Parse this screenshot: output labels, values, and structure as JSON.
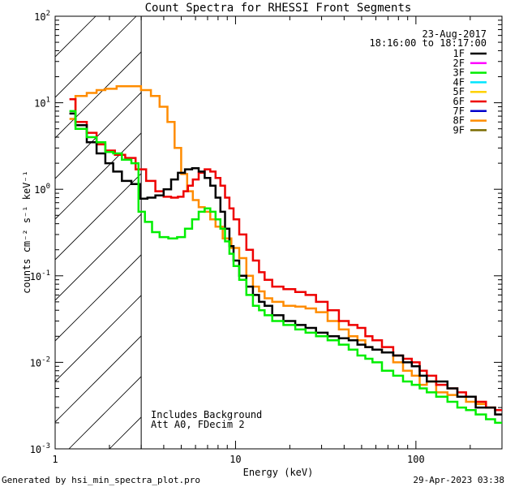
{
  "chart_data": {
    "type": "line",
    "title": "Count Spectra for RHESSI Front Segments",
    "xlabel": "Energy (keV)",
    "ylabel": "counts cm⁻² s⁻¹ keV⁻¹",
    "xscale": "log",
    "yscale": "log",
    "xlim": [
      1,
      300
    ],
    "ylim": [
      0.001,
      100
    ],
    "x_ticks": [
      {
        "value": 1,
        "label": "1"
      },
      {
        "value": 10,
        "label": "10"
      },
      {
        "value": 100,
        "label": "100"
      }
    ],
    "y_ticks": [
      {
        "value": 100,
        "base": "10",
        "exp": "2"
      },
      {
        "value": 10,
        "base": "10",
        "exp": "1"
      },
      {
        "value": 1,
        "base": "10",
        "exp": "0"
      },
      {
        "value": 0.1,
        "base": "10",
        "exp": "-1"
      },
      {
        "value": 0.01,
        "base": "10",
        "exp": "-2"
      },
      {
        "value": 0.001,
        "base": "10",
        "exp": "-3"
      }
    ],
    "attenuator_cutoff_kev": 3,
    "legend_position": "top-right",
    "legend_header": [
      "23-Aug-2017",
      "18:16:00 to 18:17:00"
    ],
    "legend": [
      {
        "label": "1F",
        "color": "#000000"
      },
      {
        "label": "2F",
        "color": "#ff00ff"
      },
      {
        "label": "3F",
        "color": "#00ee00"
      },
      {
        "label": "4F",
        "color": "#00e5ff"
      },
      {
        "label": "5F",
        "color": "#ffd200"
      },
      {
        "label": "6F",
        "color": "#ee0000"
      },
      {
        "label": "7F",
        "color": "#0000cc"
      },
      {
        "label": "8F",
        "color": "#ff8c00"
      },
      {
        "label": "9F",
        "color": "#7a6b00"
      }
    ],
    "annotations": [
      "Includes Background",
      "Att A0, FDecim 2"
    ],
    "series": [
      {
        "name": "8F",
        "color": "#ff8c00",
        "points": [
          [
            1.2,
            6.5
          ],
          [
            1.4,
            12
          ],
          [
            1.6,
            13
          ],
          [
            1.8,
            14
          ],
          [
            2.0,
            14.5
          ],
          [
            2.4,
            15.5
          ],
          [
            2.8,
            15.5
          ],
          [
            3.2,
            14
          ],
          [
            3.6,
            12
          ],
          [
            4.0,
            9
          ],
          [
            4.4,
            6
          ],
          [
            4.8,
            3
          ],
          [
            5.2,
            1.5
          ],
          [
            5.6,
            0.95
          ],
          [
            6.0,
            0.75
          ],
          [
            6.5,
            0.62
          ],
          [
            7.0,
            0.55
          ],
          [
            7.5,
            0.45
          ],
          [
            8.0,
            0.37
          ],
          [
            9.0,
            0.27
          ],
          [
            10,
            0.21
          ],
          [
            11,
            0.16
          ],
          [
            12,
            0.1
          ],
          [
            13,
            0.075
          ],
          [
            14,
            0.066
          ],
          [
            15,
            0.055
          ],
          [
            17,
            0.05
          ],
          [
            20,
            0.045
          ],
          [
            23,
            0.044
          ],
          [
            26,
            0.042
          ],
          [
            30,
            0.038
          ],
          [
            35,
            0.03
          ],
          [
            40,
            0.024
          ],
          [
            45,
            0.02
          ],
          [
            50,
            0.018
          ],
          [
            55,
            0.015
          ],
          [
            60,
            0.014
          ],
          [
            70,
            0.013
          ],
          [
            80,
            0.01
          ],
          [
            90,
            0.008
          ],
          [
            100,
            0.007
          ],
          [
            110,
            0.0055
          ],
          [
            120,
            0.006
          ],
          [
            140,
            0.0045
          ],
          [
            160,
            0.0042
          ],
          [
            180,
            0.004
          ],
          [
            200,
            0.0035
          ],
          [
            230,
            0.0033
          ],
          [
            260,
            0.003
          ],
          [
            290,
            0.0028
          ]
        ]
      },
      {
        "name": "6F",
        "color": "#ee0000",
        "points": [
          [
            1.2,
            11
          ],
          [
            1.4,
            6
          ],
          [
            1.6,
            4.5
          ],
          [
            1.8,
            3.3
          ],
          [
            2.0,
            2.8
          ],
          [
            2.3,
            2.5
          ],
          [
            2.6,
            2.3
          ],
          [
            3.0,
            1.7
          ],
          [
            3.4,
            1.25
          ],
          [
            3.8,
            0.95
          ],
          [
            4.2,
            0.82
          ],
          [
            4.6,
            0.8
          ],
          [
            5.0,
            0.82
          ],
          [
            5.3,
            0.95
          ],
          [
            5.6,
            1.1
          ],
          [
            6.0,
            1.3
          ],
          [
            6.5,
            1.55
          ],
          [
            7.0,
            1.7
          ],
          [
            7.5,
            1.6
          ],
          [
            8.0,
            1.35
          ],
          [
            8.5,
            1.1
          ],
          [
            9.0,
            0.8
          ],
          [
            9.5,
            0.6
          ],
          [
            10,
            0.45
          ],
          [
            11,
            0.3
          ],
          [
            12,
            0.2
          ],
          [
            13,
            0.15
          ],
          [
            14,
            0.11
          ],
          [
            15,
            0.09
          ],
          [
            17,
            0.075
          ],
          [
            20,
            0.07
          ],
          [
            23,
            0.065
          ],
          [
            26,
            0.06
          ],
          [
            30,
            0.05
          ],
          [
            35,
            0.04
          ],
          [
            40,
            0.03
          ],
          [
            45,
            0.027
          ],
          [
            50,
            0.025
          ],
          [
            55,
            0.02
          ],
          [
            60,
            0.018
          ],
          [
            70,
            0.015
          ],
          [
            80,
            0.012
          ],
          [
            90,
            0.011
          ],
          [
            100,
            0.01
          ],
          [
            110,
            0.008
          ],
          [
            120,
            0.007
          ],
          [
            140,
            0.0055
          ],
          [
            160,
            0.005
          ],
          [
            180,
            0.0045
          ],
          [
            200,
            0.004
          ],
          [
            230,
            0.0035
          ],
          [
            260,
            0.003
          ],
          [
            290,
            0.0028
          ]
        ]
      },
      {
        "name": "1F",
        "color": "#000000",
        "points": [
          [
            1.2,
            7.5
          ],
          [
            1.4,
            5.5
          ],
          [
            1.6,
            3.5
          ],
          [
            1.8,
            2.6
          ],
          [
            2.0,
            2.0
          ],
          [
            2.2,
            1.6
          ],
          [
            2.5,
            1.25
          ],
          [
            2.8,
            1.15
          ],
          [
            3.1,
            0.78
          ],
          [
            3.4,
            0.8
          ],
          [
            3.8,
            0.85
          ],
          [
            4.2,
            1.0
          ],
          [
            4.6,
            1.3
          ],
          [
            5.0,
            1.55
          ],
          [
            5.5,
            1.7
          ],
          [
            6.0,
            1.75
          ],
          [
            6.5,
            1.6
          ],
          [
            7.0,
            1.35
          ],
          [
            7.5,
            1.1
          ],
          [
            8.0,
            0.8
          ],
          [
            8.5,
            0.55
          ],
          [
            9.0,
            0.35
          ],
          [
            9.5,
            0.22
          ],
          [
            10,
            0.15
          ],
          [
            11,
            0.1
          ],
          [
            12,
            0.075
          ],
          [
            13,
            0.06
          ],
          [
            14,
            0.05
          ],
          [
            15,
            0.045
          ],
          [
            17,
            0.035
          ],
          [
            20,
            0.03
          ],
          [
            23,
            0.027
          ],
          [
            26,
            0.025
          ],
          [
            30,
            0.022
          ],
          [
            35,
            0.02
          ],
          [
            40,
            0.019
          ],
          [
            45,
            0.018
          ],
          [
            50,
            0.016
          ],
          [
            55,
            0.015
          ],
          [
            60,
            0.014
          ],
          [
            70,
            0.013
          ],
          [
            80,
            0.012
          ],
          [
            90,
            0.01
          ],
          [
            100,
            0.009
          ],
          [
            110,
            0.007
          ],
          [
            120,
            0.006
          ],
          [
            140,
            0.006
          ],
          [
            160,
            0.005
          ],
          [
            180,
            0.004
          ],
          [
            200,
            0.004
          ],
          [
            230,
            0.003
          ],
          [
            260,
            0.003
          ],
          [
            290,
            0.0025
          ]
        ]
      },
      {
        "name": "3F",
        "color": "#00ee00",
        "points": [
          [
            1.2,
            8
          ],
          [
            1.4,
            5
          ],
          [
            1.6,
            4
          ],
          [
            1.8,
            3.5
          ],
          [
            2.0,
            2.7
          ],
          [
            2.2,
            2.6
          ],
          [
            2.5,
            2.2
          ],
          [
            2.8,
            2.0
          ],
          [
            3.0,
            0.55
          ],
          [
            3.3,
            0.42
          ],
          [
            3.6,
            0.32
          ],
          [
            4.0,
            0.28
          ],
          [
            4.5,
            0.27
          ],
          [
            5.0,
            0.28
          ],
          [
            5.5,
            0.35
          ],
          [
            6.0,
            0.45
          ],
          [
            6.5,
            0.55
          ],
          [
            7.0,
            0.6
          ],
          [
            7.5,
            0.55
          ],
          [
            8.0,
            0.45
          ],
          [
            8.5,
            0.35
          ],
          [
            9.0,
            0.25
          ],
          [
            9.5,
            0.18
          ],
          [
            10,
            0.13
          ],
          [
            11,
            0.09
          ],
          [
            12,
            0.06
          ],
          [
            13,
            0.045
          ],
          [
            14,
            0.04
          ],
          [
            15,
            0.035
          ],
          [
            17,
            0.03
          ],
          [
            20,
            0.027
          ],
          [
            23,
            0.024
          ],
          [
            26,
            0.022
          ],
          [
            30,
            0.02
          ],
          [
            35,
            0.018
          ],
          [
            40,
            0.016
          ],
          [
            45,
            0.014
          ],
          [
            50,
            0.012
          ],
          [
            55,
            0.011
          ],
          [
            60,
            0.01
          ],
          [
            70,
            0.008
          ],
          [
            80,
            0.007
          ],
          [
            90,
            0.006
          ],
          [
            100,
            0.0055
          ],
          [
            110,
            0.005
          ],
          [
            120,
            0.0045
          ],
          [
            140,
            0.004
          ],
          [
            160,
            0.0035
          ],
          [
            180,
            0.003
          ],
          [
            200,
            0.0028
          ],
          [
            230,
            0.0025
          ],
          [
            260,
            0.0022
          ],
          [
            290,
            0.002
          ]
        ]
      }
    ]
  },
  "footer": {
    "generated": "Generated by hsi_min_spectra_plot.pro",
    "timestamp": "29-Apr-2023 03:38"
  },
  "style": {
    "background": "#ffffff",
    "axis_color": "#000000"
  }
}
